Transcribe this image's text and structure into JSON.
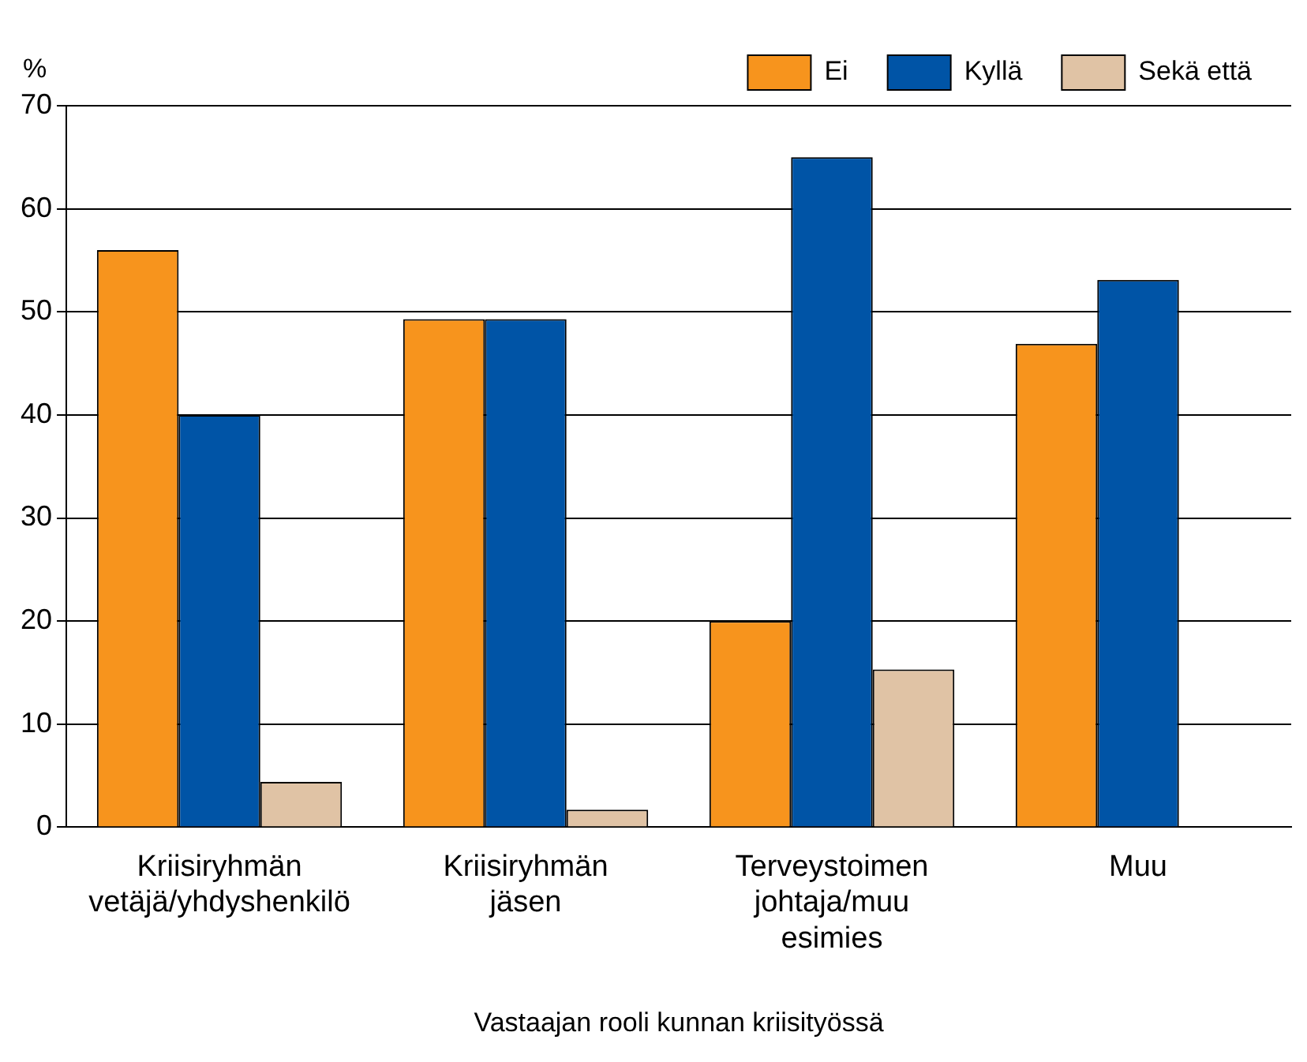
{
  "chart_data": {
    "type": "bar",
    "xlabel": "Vastaajan rooli kunnan kriisityössä",
    "ylabel": "%",
    "categories": [
      "Kriisiryhmän vetäjä/yhdyshenkilö",
      "Kriisiryhmän jäsen",
      "Terveystoimen johtaja/muu esimies",
      "Muu"
    ],
    "series": [
      {
        "name": "Ei",
        "color": "#f7941d",
        "values": [
          56,
          49.3,
          20,
          46.9
        ]
      },
      {
        "name": "Kyllä",
        "color": "#0054a6",
        "values": [
          40,
          49.3,
          65,
          53.1
        ]
      },
      {
        "name": "Sekä että",
        "color": "#e0c3a5",
        "values": [
          4.4,
          1.7,
          15.3,
          null
        ]
      }
    ],
    "ylim": [
      0,
      70
    ],
    "yticks": [
      0,
      10,
      20,
      30,
      40,
      50,
      60,
      70
    ],
    "grid": "y",
    "legend": "top right"
  }
}
